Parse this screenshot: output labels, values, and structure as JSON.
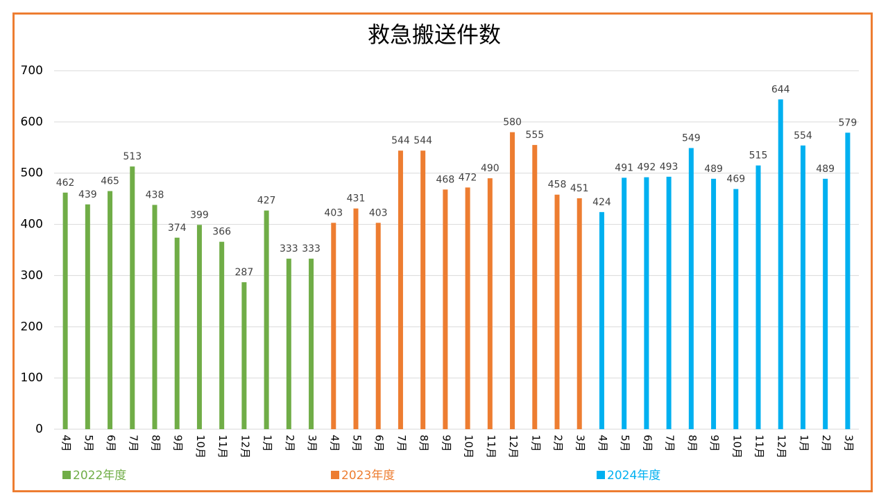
{
  "chart_data": {
    "type": "bar",
    "title": "救急搬送件数",
    "categories": [
      "4月",
      "5月",
      "6月",
      "7月",
      "8月",
      "9月",
      "10月",
      "11月",
      "12月",
      "1月",
      "2月",
      "3月",
      "4月",
      "5月",
      "6月",
      "7月",
      "8月",
      "9月",
      "10月",
      "11月",
      "12月",
      "1月",
      "2月",
      "3月",
      "4月",
      "5月",
      "6月",
      "7月",
      "8月",
      "9月",
      "10月",
      "11月",
      "12月",
      "1月",
      "2月",
      "3月"
    ],
    "series": [
      {
        "name": "2022年度",
        "color": "#70ad47",
        "values": [
          462,
          439,
          465,
          513,
          438,
          374,
          399,
          366,
          287,
          427,
          333,
          333,
          null,
          null,
          null,
          null,
          null,
          null,
          null,
          null,
          null,
          null,
          null,
          null,
          null,
          null,
          null,
          null,
          null,
          null,
          null,
          null,
          null,
          null,
          null,
          null
        ]
      },
      {
        "name": "2023年度",
        "color": "#ed7d31",
        "values": [
          null,
          null,
          null,
          null,
          null,
          null,
          null,
          null,
          null,
          null,
          null,
          null,
          403,
          431,
          403,
          544,
          544,
          468,
          472,
          490,
          580,
          555,
          458,
          451,
          null,
          null,
          null,
          null,
          null,
          null,
          null,
          null,
          null,
          null,
          null,
          null
        ]
      },
      {
        "name": "2024年度",
        "color": "#00b0f0",
        "values": [
          null,
          null,
          null,
          null,
          null,
          null,
          null,
          null,
          null,
          null,
          null,
          null,
          null,
          null,
          null,
          null,
          null,
          null,
          null,
          null,
          null,
          null,
          null,
          null,
          424,
          491,
          492,
          493,
          549,
          489,
          469,
          515,
          644,
          554,
          489,
          579
        ]
      }
    ],
    "ylim": [
      0,
      700
    ],
    "yticks": [
      0,
      100,
      200,
      300,
      400,
      500,
      600,
      700
    ],
    "grid": true,
    "legend": "bottom"
  }
}
